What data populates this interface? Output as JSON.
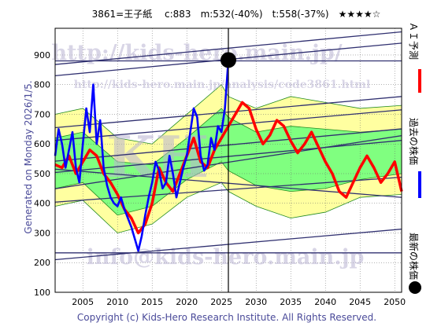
{
  "header": {
    "title": "3861=王子紙　 c:883　m:532(-40%)　t:558(-37%)　★★★★☆"
  },
  "side_note": "Generated on Monday 2026/1/5.",
  "copyright": "Copyright (c) Kids-Hero Research Institute. All Rights Reserved.",
  "watermarks": {
    "url_main": "http://kids-hero.main.jp/",
    "url_analysis": "http://kids-hero.main.jp/analysis/code3861.html",
    "email": "info@kids-hero.main.jp",
    "logo": "KH"
  },
  "legend": {
    "forecast_label": "ＡＩ予測",
    "past_label": "過去の株価",
    "latest_label": "最新の株価"
  },
  "colors": {
    "forecast": "#ff0000",
    "past": "#0000ff",
    "latest": "#000000",
    "band_outer": "#ffffa0",
    "band_inner": "#80ff80",
    "band_line": "#228b22",
    "trend": "#303070",
    "grid": "#666666"
  },
  "chart_data": {
    "type": "line",
    "title": "3861=王子紙",
    "xlabel": "",
    "ylabel": "",
    "xlim": [
      2001,
      2051
    ],
    "ylim": [
      100,
      990
    ],
    "x_ticks": [
      2005,
      2010,
      2015,
      2020,
      2025,
      2030,
      2035,
      2040,
      2045,
      2050
    ],
    "y_ticks": [
      100,
      200,
      300,
      400,
      500,
      600,
      700,
      800,
      900
    ],
    "grid": true,
    "latest": {
      "x": 2026.0,
      "y": 883
    },
    "reference_line_x": 2026.0,
    "series": [
      {
        "role": "past",
        "x": [
          2001.0,
          2001.5,
          2002.0,
          2002.5,
          2003.0,
          2003.5,
          2004.0,
          2004.5,
          2005.0,
          2005.5,
          2006.0,
          2006.5,
          2007.0,
          2007.5,
          2008.0,
          2008.5,
          2009.0,
          2009.5,
          2010.0,
          2010.5,
          2011.0,
          2011.5,
          2012.0,
          2012.5,
          2013.0,
          2013.5,
          2014.0,
          2014.5,
          2015.0,
          2015.5,
          2016.0,
          2016.5,
          2017.0,
          2017.5,
          2018.0,
          2018.5,
          2019.0,
          2019.5,
          2020.0,
          2020.5,
          2021.0,
          2021.5,
          2022.0,
          2022.5,
          2023.0,
          2023.5,
          2024.0,
          2024.5,
          2025.0,
          2025.5,
          2026.0
        ],
        "values": [
          560,
          650,
          600,
          520,
          580,
          640,
          520,
          470,
          600,
          720,
          640,
          800,
          600,
          680,
          520,
          460,
          420,
          400,
          390,
          420,
          380,
          350,
          320,
          280,
          240,
          290,
          360,
          420,
          470,
          540,
          510,
          450,
          470,
          560,
          500,
          420,
          470,
          520,
          560,
          640,
          720,
          690,
          560,
          510,
          530,
          620,
          580,
          660,
          640,
          720,
          883
        ]
      },
      {
        "role": "forecast",
        "x": [
          2001.0,
          2002.0,
          2003.0,
          2004.0,
          2005.0,
          2006.0,
          2007.0,
          2008.0,
          2009.0,
          2010.0,
          2011.0,
          2012.0,
          2013.0,
          2014.0,
          2015.0,
          2016.0,
          2017.0,
          2018.0,
          2019.0,
          2020.0,
          2021.0,
          2022.0,
          2023.0,
          2024.0,
          2025.0,
          2026.0,
          2027.0,
          2028.0,
          2029.0,
          2030.0,
          2031.0,
          2032.0,
          2033.0,
          2034.0,
          2035.0,
          2036.0,
          2037.0,
          2038.0,
          2039.0,
          2040.0,
          2041.0,
          2042.0,
          2043.0,
          2044.0,
          2045.0,
          2046.0,
          2047.0,
          2048.0,
          2049.0,
          2050.0,
          2051.0
        ],
        "values": [
          530,
          520,
          560,
          500,
          540,
          580,
          560,
          500,
          470,
          430,
          380,
          350,
          300,
          330,
          400,
          520,
          470,
          440,
          500,
          560,
          620,
          540,
          520,
          580,
          620,
          660,
          700,
          740,
          720,
          650,
          600,
          630,
          680,
          660,
          610,
          570,
          600,
          640,
          590,
          540,
          500,
          440,
          420,
          470,
          520,
          560,
          520,
          470,
          500,
          540,
          440
        ]
      },
      {
        "role": "band_upper_outer",
        "x": [
          2001,
          2005,
          2010,
          2015,
          2020,
          2025,
          2026,
          2030,
          2035,
          2040,
          2045,
          2051
        ],
        "values": [
          700,
          720,
          620,
          600,
          700,
          800,
          760,
          720,
          760,
          740,
          720,
          730
        ]
      },
      {
        "role": "band_lower_outer",
        "x": [
          2001,
          2005,
          2010,
          2015,
          2020,
          2025,
          2026,
          2030,
          2035,
          2040,
          2045,
          2051
        ],
        "values": [
          390,
          410,
          300,
          330,
          420,
          470,
          440,
          390,
          350,
          370,
          420,
          430
        ]
      },
      {
        "role": "band_upper_inner",
        "x": [
          2001,
          2005,
          2010,
          2015,
          2020,
          2025,
          2026,
          2030,
          2035,
          2040,
          2045,
          2051
        ],
        "values": [
          620,
          640,
          540,
          530,
          620,
          720,
          690,
          640,
          660,
          650,
          640,
          650
        ]
      },
      {
        "role": "band_lower_inner",
        "x": [
          2001,
          2005,
          2010,
          2015,
          2020,
          2025,
          2026,
          2030,
          2035,
          2040,
          2045,
          2051
        ],
        "values": [
          450,
          470,
          360,
          390,
          480,
          540,
          510,
          460,
          440,
          450,
          480,
          500
        ]
      }
    ],
    "trend_lines": [
      {
        "x": [
          2001,
          2051
        ],
        "values": [
          868,
          978
        ]
      },
      {
        "x": [
          2001,
          2051
        ],
        "values": [
          830,
          940
        ]
      },
      {
        "x": [
          2001,
          2051
        ],
        "values": [
          655,
          760
        ]
      },
      {
        "x": [
          2001,
          2051
        ],
        "values": [
          612,
          715
        ]
      },
      {
        "x": [
          2001,
          2051
        ],
        "values": [
          542,
          651
        ]
      },
      {
        "x": [
          2001,
          2051
        ],
        "values": [
          504,
          612
        ]
      },
      {
        "x": [
          2001,
          2051
        ],
        "values": [
          449,
          628
        ]
      },
      {
        "x": [
          2001,
          2051
        ],
        "values": [
          515,
          420
        ]
      },
      {
        "x": [
          2001,
          2051
        ],
        "values": [
          404,
          488
        ]
      },
      {
        "x": [
          2001,
          2051
        ],
        "values": [
          210,
          313
        ]
      },
      {
        "x": [
          2001,
          2051
        ],
        "values": [
          233,
          233
        ]
      },
      {
        "x": [
          2001,
          2051
        ],
        "values": [
          880,
          880
        ]
      }
    ]
  }
}
